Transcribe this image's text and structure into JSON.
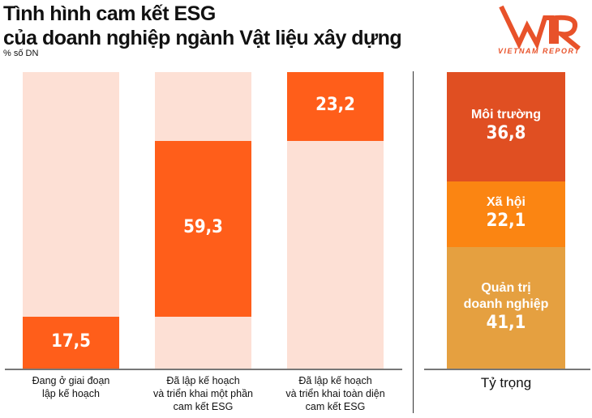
{
  "title_line1": "Tình hình cam kết ESG",
  "title_line2": "của doanh nghiệp ngành Vật liệu xây dựng",
  "subtitle": "% số DN",
  "logo": {
    "mark": "VNR",
    "text": "VIETNAM REPORT"
  },
  "colors": {
    "bar_fill": "#ff5e1a",
    "bar_background": "#fde0d5",
    "env": "#e04f22",
    "social": "#fb8512",
    "gov": "#e5a040"
  },
  "chart_data": [
    {
      "type": "bar",
      "ylabel": "% số DN",
      "ylim": [
        0,
        100
      ],
      "categories": [
        "Đang ở giai đoạn\nlập kế hoạch",
        "Đã lập kế hoạch\nvà triển khai một phần\ncam kết ESG",
        "Đã lập kế hoạch\nvà triển khai toàn diện\ncam kết ESG"
      ],
      "values": [
        17.5,
        59.3,
        23.2
      ],
      "value_labels": [
        "17,5",
        "59,3",
        "23,2"
      ]
    },
    {
      "type": "bar",
      "stacked": true,
      "categories": [
        "Tỷ trọng"
      ],
      "ylim": [
        0,
        100
      ],
      "series": [
        {
          "name": "Môi trường",
          "values": [
            36.8
          ],
          "label": "36,8"
        },
        {
          "name": "Xã hội",
          "values": [
            22.1
          ],
          "label": "22,1"
        },
        {
          "name": "Quản trị\ndoanh nghiệp",
          "values": [
            41.1
          ],
          "label": "41,1"
        }
      ]
    }
  ]
}
